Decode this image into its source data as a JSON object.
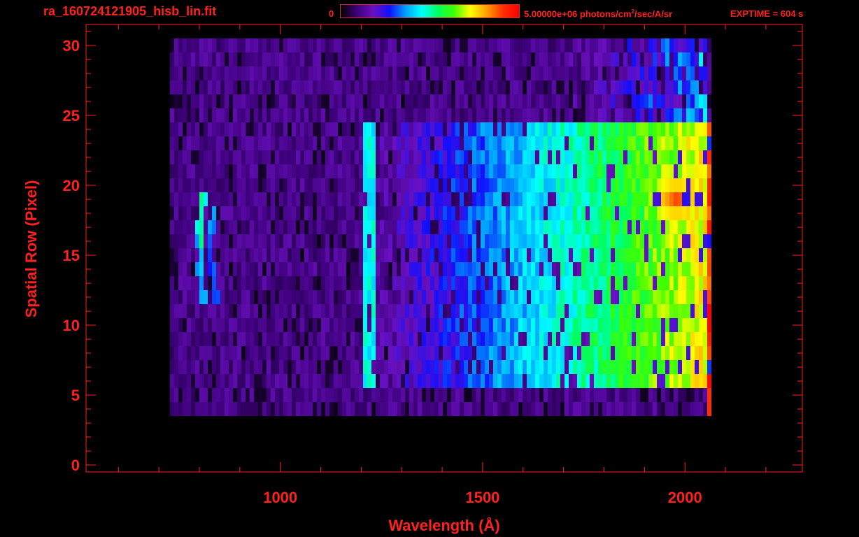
{
  "header": {
    "file_title": "ra_160724121905_hisb_lin.fit",
    "colorbar_min": "0",
    "colorbar_max_label": "5.00000e+06 photons/cm",
    "colorbar_max_sup": "2",
    "colorbar_max_rest": "/sec/A/sr",
    "exptime": "EXPTIME = 604 s"
  },
  "colors": {
    "text": "#ff2020",
    "axis": "#ff2020",
    "background": "#000000",
    "colormap": [
      "#000000",
      "#3c0078",
      "#6a10c0",
      "#1010ff",
      "#00a0ff",
      "#00ffff",
      "#00ff60",
      "#40ff00",
      "#ffff00",
      "#ffa000",
      "#ff3000",
      "#ff0000"
    ]
  },
  "chart_data": {
    "type": "heatmap",
    "xlabel": "Wavelength (Å)",
    "ylabel": "Spatial Row (Pixel)",
    "xlim": [
      520,
      2290
    ],
    "ylim": [
      -0.5,
      31.5
    ],
    "xticks": [
      1000,
      1500,
      2000
    ],
    "yticks": [
      0,
      5,
      10,
      15,
      20,
      25,
      30
    ],
    "colorbar": {
      "min": 0,
      "max": 5000000,
      "units": "photons/cm^2/sec/A/sr"
    },
    "grid": false,
    "features": [
      {
        "kind": "continuum",
        "x_range": [
          1200,
          2060
        ],
        "y_range": [
          6,
          24
        ],
        "level_at_1200": 0.1,
        "level_at_2050": 0.75
      },
      {
        "kind": "emission_line",
        "x": 1216,
        "y_range": [
          6,
          24
        ],
        "level": 0.45
      },
      {
        "kind": "bright_knot",
        "x": 1975,
        "y": 19,
        "level": 0.9
      },
      {
        "kind": "red_edge",
        "x": 2055,
        "y_range": [
          4,
          24
        ],
        "level": 1.0
      },
      {
        "kind": "curved_arc",
        "x_range": [
          790,
          830
        ],
        "y_range": [
          12,
          19
        ],
        "level": 0.5
      }
    ]
  }
}
